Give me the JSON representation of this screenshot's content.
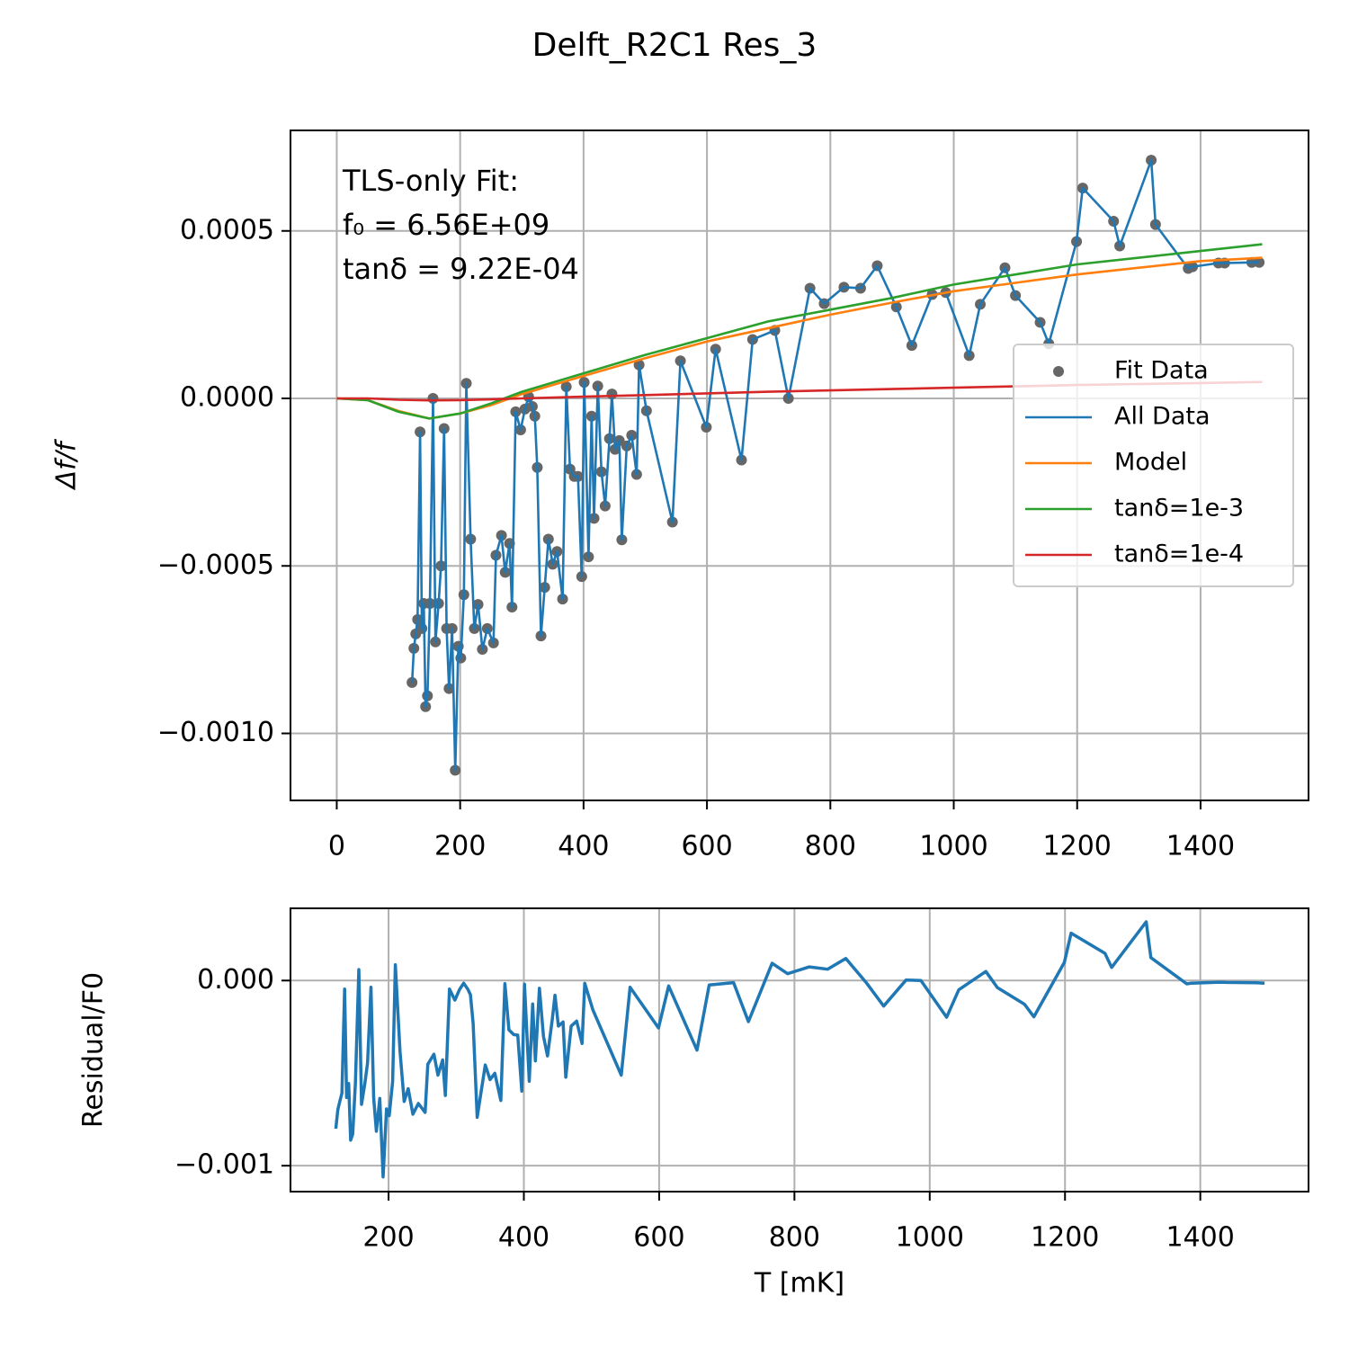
{
  "chart_data": [
    {
      "type": "line",
      "title": "Delft_R2C1 Res_3",
      "ylabel": "Δf/f",
      "annotations": [
        "TLS-only Fit:",
        "f₀ = 6.56E+09",
        "tanδ = 9.22E-04"
      ],
      "legend": "center right",
      "grid": true,
      "xlim": [
        -75,
        1575
      ],
      "ylim": [
        -0.0012,
        0.0008
      ],
      "xticks": [
        0,
        200,
        400,
        600,
        800,
        1000,
        1200,
        1400
      ],
      "yticks": [
        {
          "value": -0.001,
          "label": "−0.0010"
        },
        {
          "value": -0.0005,
          "label": "−0.0005"
        },
        {
          "value": 0,
          "label": "0.0000"
        },
        {
          "value": 0.0005,
          "label": "0.0005"
        }
      ],
      "x": [
        122,
        125,
        128,
        131,
        135,
        138,
        141,
        144,
        147,
        151,
        156,
        160,
        165,
        169,
        174,
        178,
        182,
        187,
        192,
        197,
        201,
        206,
        210,
        217,
        223,
        229,
        236,
        244,
        254,
        258,
        267,
        273,
        280,
        284,
        290,
        298,
        305,
        311,
        317,
        321,
        325,
        331,
        337,
        343,
        350,
        357,
        366,
        372,
        378,
        385,
        391,
        397,
        401,
        408,
        413,
        417,
        423,
        429,
        435,
        442,
        446,
        451,
        458,
        462,
        470,
        478,
        486,
        490,
        502,
        544,
        557,
        599,
        614,
        656,
        674,
        710,
        732,
        767,
        790,
        822,
        849,
        876,
        907,
        932,
        965,
        987,
        1025,
        1043,
        1083,
        1100,
        1140,
        1154,
        1199,
        1209,
        1259,
        1269,
        1320,
        1327,
        1380,
        1387,
        1429,
        1439,
        1483,
        1495
      ],
      "series": [
        {
          "name": "Fit Data",
          "type": "scatter",
          "color": "#666666",
          "values": [
            -0.000848,
            -0.000746,
            -0.000703,
            -0.00066,
            -0.0001,
            -0.000687,
            -0.000612,
            -0.00092,
            -0.000888,
            -0.000612,
            0.0,
            -0.000727,
            -0.000612,
            -0.0005,
            -9e-05,
            -0.000687,
            -0.000866,
            -0.000687,
            -0.00111,
            -0.00074,
            -0.000775,
            -0.000586,
            4.5e-05,
            -0.00042,
            -0.000687,
            -0.000615,
            -0.000749,
            -0.000687,
            -0.00073,
            -0.000468,
            -0.000409,
            -0.000519,
            -0.000433,
            -0.000623,
            -4e-05,
            -9.4e-05,
            -3.2e-05,
            5e-06,
            -2.4e-05,
            -5.3e-05,
            -0.000206,
            -0.000709,
            -0.000564,
            -0.00042,
            -0.000495,
            -0.000457,
            -0.000599,
            3.5e-05,
            -0.000211,
            -0.000233,
            -0.000233,
            -0.000532,
            4.8e-05,
            -0.000473,
            -5.3e-05,
            -0.000358,
            3.7e-05,
            -0.000219,
            -0.000321,
            -0.00012,
            1.3e-05,
            -0.000152,
            -0.000126,
            -0.000422,
            -0.000142,
            -0.00011,
            -0.000227,
            0.0001,
            -3.7e-05,
            -0.000369,
            0.000112,
            -8.6e-05,
            0.000147,
            -0.000184,
            0.000176,
            0.000203,
            0.0,
            0.000329,
            0.000283,
            0.000332,
            0.000329,
            0.000396,
            0.000273,
            0.000158,
            0.00031,
            0.000316,
            0.000128,
            0.000281,
            0.00039,
            0.000307,
            0.000227,
            0.000163,
            0.000468,
            0.000628,
            0.000529,
            0.000455,
            0.000711,
            0.000519,
            0.000388,
            0.000393,
            0.000404,
            0.000404,
            0.000406,
            0.000406
          ]
        },
        {
          "name": "All Data",
          "type": "line",
          "color": "#1f77b4",
          "values": [
            -0.000848,
            -0.000746,
            -0.000703,
            -0.00066,
            -0.0001,
            -0.000687,
            -0.000612,
            -0.00092,
            -0.000888,
            -0.000612,
            0.0,
            -0.000727,
            -0.000612,
            -0.0005,
            -9e-05,
            -0.000687,
            -0.000866,
            -0.000687,
            -0.00111,
            -0.00074,
            -0.000775,
            -0.000586,
            4.5e-05,
            -0.00042,
            -0.000687,
            -0.000615,
            -0.000749,
            -0.000687,
            -0.00073,
            -0.000468,
            -0.000409,
            -0.000519,
            -0.000433,
            -0.000623,
            -4e-05,
            -9.4e-05,
            -3.2e-05,
            5e-06,
            -2.4e-05,
            -5.3e-05,
            -0.000206,
            -0.000709,
            -0.000564,
            -0.00042,
            -0.000495,
            -0.000457,
            -0.000599,
            3.5e-05,
            -0.000211,
            -0.000233,
            -0.000233,
            -0.000532,
            4.8e-05,
            -0.000473,
            -5.3e-05,
            -0.000358,
            3.7e-05,
            -0.000219,
            -0.000321,
            -0.00012,
            1.3e-05,
            -0.000152,
            -0.000126,
            -0.000422,
            -0.000142,
            -0.00011,
            -0.000227,
            0.0001,
            -3.7e-05,
            -0.000369,
            0.000112,
            -8.6e-05,
            0.000147,
            -0.000184,
            0.000176,
            0.000203,
            0.0,
            0.000329,
            0.000283,
            0.000332,
            0.000329,
            0.000396,
            0.000273,
            0.000158,
            0.00031,
            0.000316,
            0.000128,
            0.000281,
            0.00039,
            0.000307,
            0.000227,
            0.000163,
            0.000468,
            0.000628,
            0.000529,
            0.000455,
            0.000711,
            0.000519,
            0.000388,
            0.000393,
            0.000404,
            0.000404,
            0.000406,
            0.000406
          ]
        },
        {
          "name": "Model",
          "type": "line",
          "color": "#ff7f0e",
          "x": [
            0,
            50,
            100,
            150,
            200,
            250,
            300,
            400,
            500,
            600,
            700,
            800,
            900,
            1000,
            1100,
            1200,
            1300,
            1400,
            1500
          ],
          "values": [
            0,
            -5e-06,
            -3.75e-05,
            -6e-05,
            -4.5e-05,
            -2e-05,
            1.3e-05,
            6.7e-05,
            0.00012,
            0.00017,
            0.00021,
            0.00025,
            0.000286,
            0.00032,
            0.000345,
            0.00037,
            0.00039,
            0.00041,
            0.00042
          ]
        },
        {
          "name": "tanδ=1e-3",
          "type": "line",
          "color": "#2ca02c",
          "x": [
            0,
            50,
            100,
            150,
            200,
            250,
            300,
            400,
            500,
            600,
            700,
            800,
            900,
            1000,
            1100,
            1200,
            1300,
            1400,
            1500
          ],
          "values": [
            0,
            -5e-06,
            -4e-05,
            -6e-05,
            -4.5e-05,
            -1.5e-05,
            2e-05,
            7.5e-05,
            0.00013,
            0.00018,
            0.00023,
            0.000265,
            0.0003,
            0.00034,
            0.00037,
            0.0004,
            0.00042,
            0.00044,
            0.00046
          ]
        },
        {
          "name": "tanδ=1e-4",
          "type": "line",
          "color": "#d62728",
          "x": [
            0,
            50,
            100,
            150,
            200,
            250,
            300,
            400,
            500,
            600,
            700,
            800,
            900,
            1000,
            1100,
            1200,
            1300,
            1400,
            1500
          ],
          "values": [
            0,
            0,
            -4e-06,
            -6e-06,
            -5e-06,
            -3e-06,
            0,
            5e-06,
            1e-05,
            1.5e-05,
            2e-05,
            2.4e-05,
            2.8e-05,
            3.2e-05,
            3.6e-05,
            4e-05,
            4.3e-05,
            4.6e-05,
            4.9e-05
          ]
        }
      ]
    },
    {
      "type": "line",
      "xlabel": "T [mK]",
      "ylabel": "Residual/F0",
      "grid": true,
      "xlim": [
        55,
        1560
      ],
      "ylim": [
        -0.00114,
        0.00039
      ],
      "xticks": [
        200,
        400,
        600,
        800,
        1000,
        1200,
        1400
      ],
      "yticks": [
        {
          "value": -0.001,
          "label": "−0.001"
        },
        {
          "value": 0,
          "label": "0.000"
        }
      ],
      "x": [
        122,
        125,
        128,
        131,
        135,
        138,
        141,
        144,
        147,
        151,
        156,
        160,
        165,
        169,
        174,
        178,
        182,
        187,
        192,
        197,
        201,
        206,
        210,
        217,
        223,
        229,
        236,
        244,
        254,
        258,
        267,
        273,
        280,
        284,
        290,
        298,
        305,
        311,
        317,
        321,
        325,
        331,
        337,
        343,
        350,
        357,
        366,
        372,
        378,
        385,
        391,
        397,
        401,
        408,
        413,
        417,
        423,
        429,
        435,
        442,
        446,
        451,
        458,
        462,
        470,
        478,
        486,
        490,
        502,
        544,
        557,
        599,
        614,
        656,
        674,
        710,
        732,
        767,
        790,
        822,
        849,
        876,
        907,
        932,
        965,
        987,
        1025,
        1043,
        1083,
        1100,
        1140,
        1154,
        1199,
        1209,
        1259,
        1269,
        1320,
        1327,
        1380,
        1387,
        1429,
        1439,
        1483,
        1495
      ],
      "series": [
        {
          "type": "line",
          "color": "#1f77b4",
          "width": 3.5,
          "values": [
            -0.0008,
            -0.000696,
            -0.000652,
            -0.000608,
            -4.6e-05,
            -0.000632,
            -0.000556,
            -0.000862,
            -0.000829,
            -0.000552,
            5.9e-05,
            -0.000669,
            -0.000556,
            -0.000445,
            -3.6e-05,
            -0.000634,
            -0.000814,
            -0.000637,
            -0.001061,
            -0.000693,
            -0.00073,
            -0.000544,
            8.5e-05,
            -0.000383,
            -0.000653,
            -0.000584,
            -0.000722,
            -0.000664,
            -0.000712,
            -0.000452,
            -0.000398,
            -0.000511,
            -0.000429,
            -0.000621,
            -4.6e-05,
            -0.000106,
            -4.8e-05,
            -1.4e-05,
            -4.6e-05,
            -7.7e-05,
            -0.000232,
            -0.000739,
            -0.000597,
            -0.000456,
            -0.000535,
            -0.000501,
            -0.000648,
            -1.7e-05,
            -0.000266,
            -0.000292,
            -0.000295,
            -0.000597,
            -2e-05,
            -0.000544,
            -0.000127,
            -0.000434,
            -4.2e-05,
            -0.000301,
            -0.000407,
            -0.00021,
            -7.9e-05,
            -0.000246,
            -0.000224,
            -0.000522,
            -0.000246,
            -0.000219,
            -0.00034,
            -1.5e-05,
            -0.000158,
            -0.000511,
            -3.6e-05,
            -0.000256,
            -2.9e-05,
            -0.000376,
            -2.4e-05,
            -1.1e-05,
            -0.000222,
            9.3e-05,
            3.7e-05,
            7.4e-05,
            6.1e-05,
            0.000119,
            -1.5e-05,
            -0.000138,
            3e-06,
            0,
            -0.000198,
            -5e-05,
            4.9e-05,
            -3.8e-05,
            -0.000128,
            -0.000196,
            9.8e-05,
            0.000256,
            0.000147,
            7.1e-05,
            0.000317,
            0.000124,
            -1.8e-05,
            -1.4e-05,
            -9e-06,
            -1e-05,
            -1.2e-05,
            -1.4e-05
          ]
        }
      ]
    }
  ]
}
